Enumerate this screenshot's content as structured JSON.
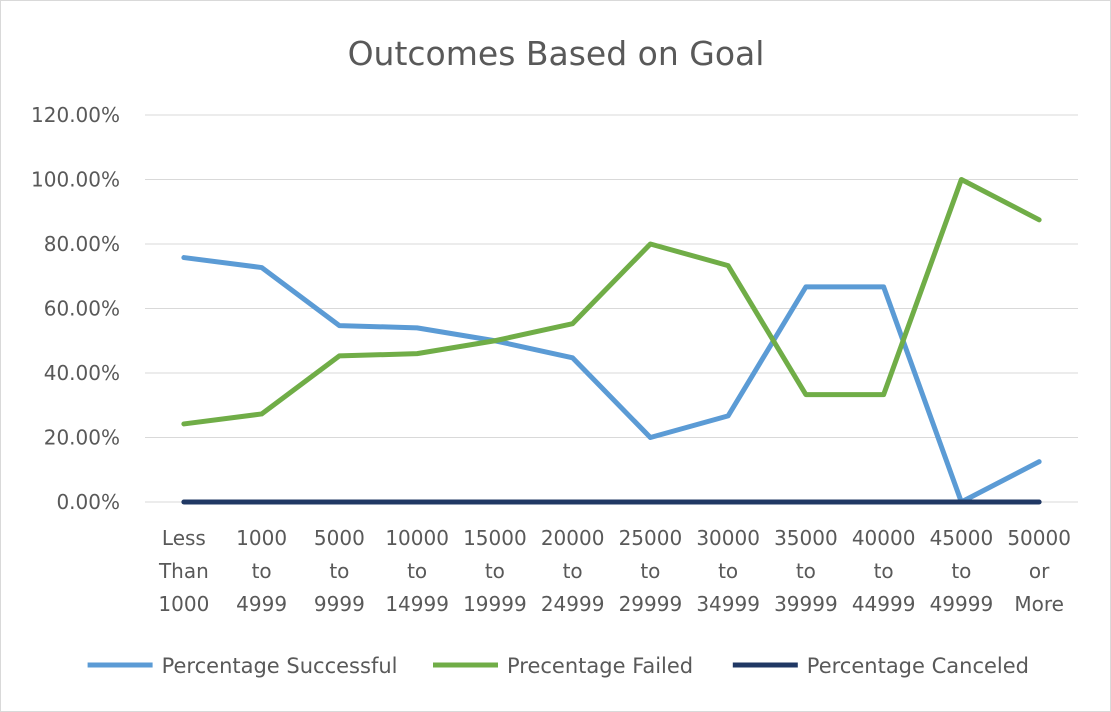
{
  "chart_data": {
    "type": "line",
    "title": "Outcomes Based on Goal",
    "xlabel": "",
    "ylabel": "",
    "categories": [
      [
        "Less",
        "Than",
        "1000"
      ],
      [
        "1000",
        "to",
        "4999"
      ],
      [
        "5000",
        "to",
        "9999"
      ],
      [
        "10000",
        "to",
        "14999"
      ],
      [
        "15000",
        "to",
        "19999"
      ],
      [
        "20000",
        "to",
        "24999"
      ],
      [
        "25000",
        "to",
        "29999"
      ],
      [
        "30000",
        "to",
        "34999"
      ],
      [
        "35000",
        "to",
        "39999"
      ],
      [
        "40000",
        "to",
        "44999"
      ],
      [
        "45000",
        "to",
        "49999"
      ],
      [
        "50000",
        "or",
        "More"
      ]
    ],
    "ylim": [
      0,
      120
    ],
    "yticks": [
      0,
      20,
      40,
      60,
      80,
      100,
      120
    ],
    "ytick_labels": [
      "0.00%",
      "20.00%",
      "40.00%",
      "60.00%",
      "80.00%",
      "100.00%",
      "120.00%"
    ],
    "grid": true,
    "legend_position": "bottom",
    "series": [
      {
        "name": "Percentage Successful",
        "color": "#5b9bd5",
        "values": [
          75.8,
          72.7,
          54.7,
          54.0,
          50.0,
          44.7,
          20.0,
          26.7,
          66.7,
          66.7,
          0.0,
          12.5
        ]
      },
      {
        "name": "Precentage Failed",
        "color": "#70ad47",
        "values": [
          24.2,
          27.3,
          45.3,
          46.0,
          50.0,
          55.3,
          80.0,
          73.3,
          33.3,
          33.3,
          100.0,
          87.5
        ]
      },
      {
        "name": "Percentage Canceled",
        "color": "#203864",
        "values": [
          0,
          0,
          0,
          0,
          0,
          0,
          0,
          0,
          0,
          0,
          0,
          0
        ]
      }
    ]
  }
}
